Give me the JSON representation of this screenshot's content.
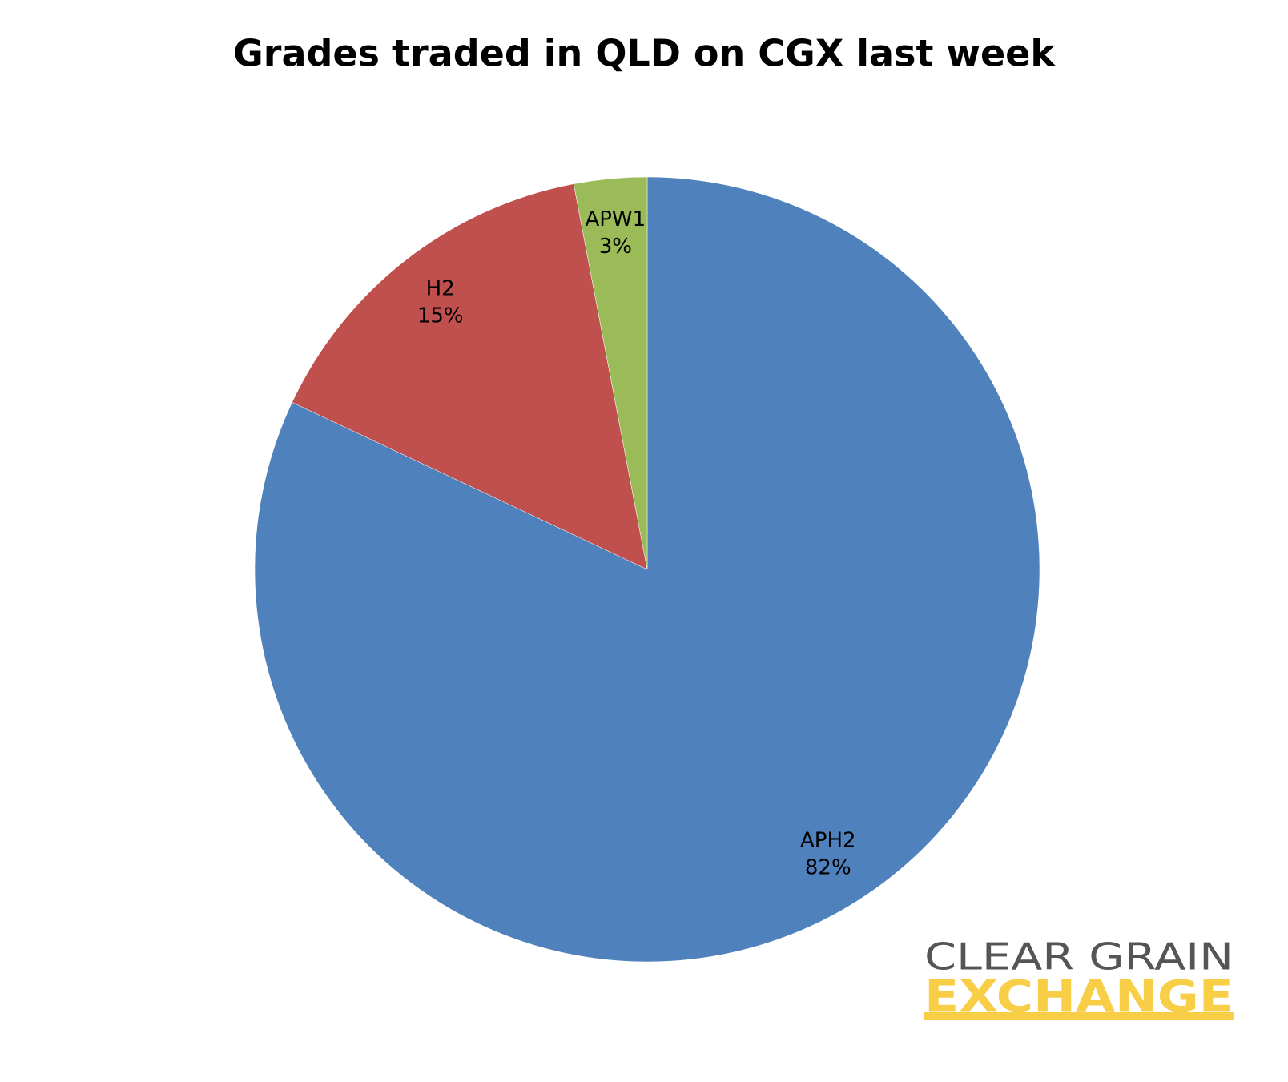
{
  "chart_data": {
    "type": "pie",
    "title": "Grades traded in QLD on CGX last week",
    "categories": [
      "APH2",
      "H2",
      "APW1"
    ],
    "values": [
      82,
      15,
      3
    ],
    "value_labels": [
      "82%",
      "15%",
      "3%"
    ],
    "colors": [
      "#4f81bd",
      "#c0504d",
      "#9bbb59"
    ]
  },
  "logo": {
    "line1": "CLEAR GRAIN",
    "line2": "EXCHANGE"
  }
}
